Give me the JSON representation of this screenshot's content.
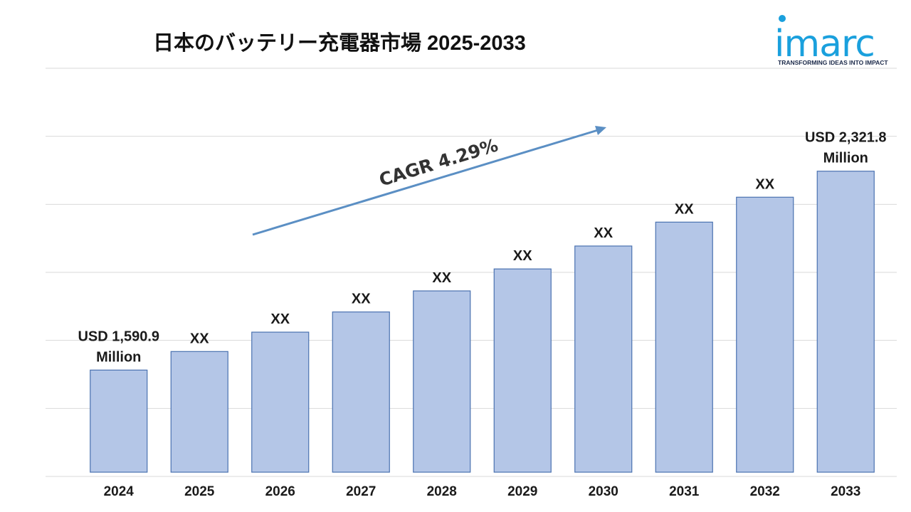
{
  "title": "日本のバッテリー充電器市場 2025-2033",
  "logo": {
    "name": "imarc",
    "tagline": "TRANSFORMING IDEAS INTO IMPACT"
  },
  "cagr_label": "CAGR 4.29%",
  "colors": {
    "bar_fill": "#b4c6e7",
    "bar_stroke": "#4a72b0",
    "arrow": "#5b8fc4",
    "logo": "#1aa0dd",
    "grid": "#d9d9d9"
  },
  "chart_data": {
    "type": "bar",
    "categories": [
      "2024",
      "2025",
      "2026",
      "2027",
      "2028",
      "2029",
      "2030",
      "2031",
      "2032",
      "2033"
    ],
    "values": [
      1590.9,
      1659.1,
      1730.3,
      1804.5,
      1881.9,
      1962.6,
      2046.8,
      2134.6,
      2226.2,
      2321.8
    ],
    "data_labels": [
      [
        "USD 1,590.9",
        "Million"
      ],
      [
        "XX"
      ],
      [
        "XX"
      ],
      [
        "XX"
      ],
      [
        "XX"
      ],
      [
        "XX"
      ],
      [
        "XX"
      ],
      [
        "XX"
      ],
      [
        "XX"
      ],
      [
        "USD 2,321.8",
        "Million"
      ]
    ],
    "ylim": [
      1200,
      2700
    ],
    "grid": true,
    "legend": "none"
  }
}
